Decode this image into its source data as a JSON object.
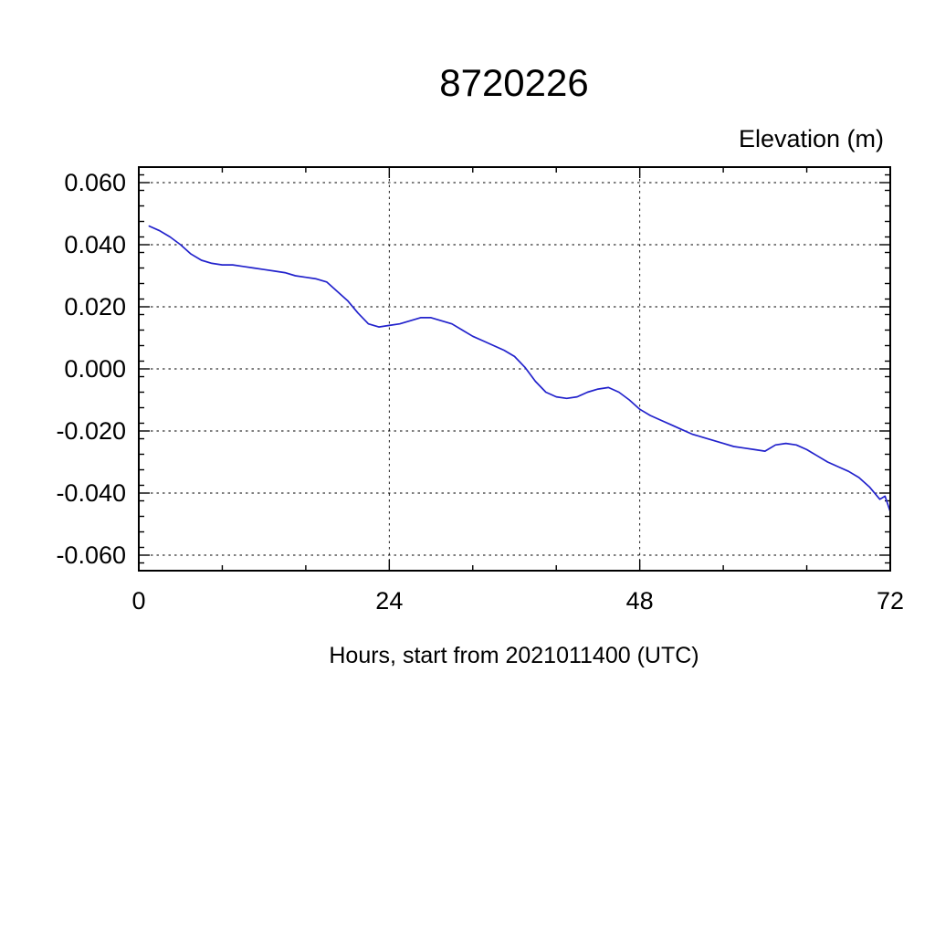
{
  "page": {
    "background": "#ffffff"
  },
  "chart": {
    "title": "8720226",
    "ylabel": "Elevation (m)",
    "xlabel": "Hours, start from 2021011400 (UTC)"
  },
  "chart_data": {
    "type": "line",
    "title": "8720226",
    "ylabel": "Elevation (m)",
    "xlabel": "Hours, start from 2021011400 (UTC)",
    "xlim": [
      0,
      72
    ],
    "ylim": [
      -0.065,
      0.065
    ],
    "x_major_ticks": [
      0,
      24,
      48,
      72
    ],
    "x_minor_step": 8,
    "y_major_ticks": [
      0.06,
      0.04,
      0.02,
      0,
      -0.02,
      -0.04,
      -0.06
    ],
    "y_minor_step": 0.005,
    "x_gridlines": [
      24,
      48
    ],
    "y_gridlines": [
      0.06,
      0.04,
      0.02,
      0,
      -0.02,
      -0.04,
      -0.06
    ],
    "grid_style": "dashed",
    "legend": false,
    "frame_color": "#000000",
    "grid_color": "#000000",
    "line_color": "#2222cc",
    "series": [
      {
        "name": "elevation",
        "x": [
          1,
          2,
          3,
          4,
          5,
          6,
          7,
          8,
          9,
          10,
          11,
          12,
          13,
          14,
          15,
          16,
          17,
          18,
          19,
          20,
          21,
          22,
          23,
          24,
          25,
          26,
          27,
          28,
          29,
          30,
          31,
          32,
          33,
          34,
          35,
          36,
          37,
          38,
          39,
          40,
          41,
          42,
          43,
          44,
          45,
          46,
          47,
          48,
          49,
          50,
          51,
          52,
          53,
          54,
          55,
          56,
          57,
          58,
          59,
          60,
          61,
          62,
          63,
          64,
          65,
          66,
          67,
          68,
          69,
          70,
          71,
          71.5,
          72
        ],
        "y": [
          0.046,
          0.0445,
          0.0425,
          0.04,
          0.037,
          0.035,
          0.034,
          0.0335,
          0.0335,
          0.033,
          0.0325,
          0.032,
          0.0315,
          0.031,
          0.03,
          0.0295,
          0.029,
          0.028,
          0.025,
          0.022,
          0.018,
          0.0145,
          0.0135,
          0.014,
          0.0145,
          0.0155,
          0.0165,
          0.0165,
          0.0155,
          0.0145,
          0.0125,
          0.0105,
          0.009,
          0.0075,
          0.006,
          0.004,
          0.0005,
          -0.004,
          -0.0075,
          -0.009,
          -0.0095,
          -0.009,
          -0.0075,
          -0.0065,
          -0.006,
          -0.0075,
          -0.01,
          -0.013,
          -0.015,
          -0.0165,
          -0.018,
          -0.0195,
          -0.021,
          -0.022,
          -0.023,
          -0.024,
          -0.025,
          -0.0255,
          -0.026,
          -0.0265,
          -0.0245,
          -0.024,
          -0.0245,
          -0.026,
          -0.028,
          -0.03,
          -0.0315,
          -0.033,
          -0.035,
          -0.038,
          -0.042,
          -0.041,
          -0.046
        ]
      }
    ]
  }
}
